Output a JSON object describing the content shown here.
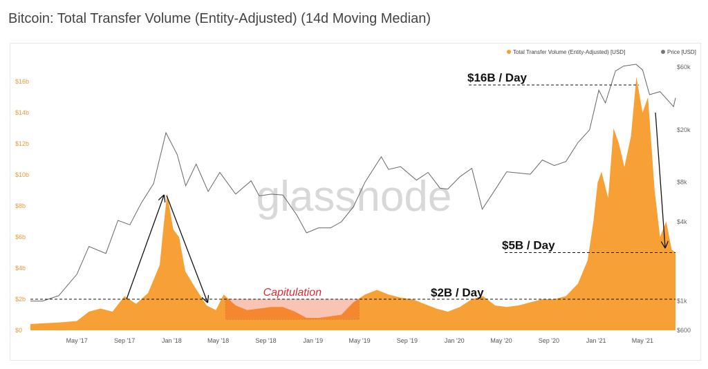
{
  "title": "Bitcoin: Total Transfer Volume (Entity-Adjusted) (14d Moving Median)",
  "chart_data": {
    "type": "area",
    "title": "Bitcoin: Total Transfer Volume (Entity-Adjusted) (14d Moving Median)",
    "legend": [
      {
        "label": "Total Transfer Volume (Entity-Adjusted) [USD]",
        "color": "#f7a035"
      },
      {
        "label": "Price [USD]",
        "color": "#777777"
      }
    ],
    "legend_position": "top-right",
    "x_ticks": [
      "May '17",
      "Sep '17",
      "Jan '18",
      "May '18",
      "Sep '18",
      "Jan '19",
      "May '19",
      "Sep '19",
      "Jan '20",
      "May '20",
      "Sep '20",
      "Jan '21",
      "May '21"
    ],
    "x_tick_dates": [
      "2017-05-01",
      "2017-09-01",
      "2018-01-01",
      "2018-05-01",
      "2018-09-01",
      "2019-01-01",
      "2019-05-01",
      "2019-09-01",
      "2020-01-01",
      "2020-05-01",
      "2020-09-01",
      "2021-01-01",
      "2021-05-01"
    ],
    "xlim": [
      "2017-01-01",
      "2021-07-25"
    ],
    "y_left": {
      "ticks": [
        "$0",
        "$2b",
        "$4b",
        "$6b",
        "$8b",
        "$10b",
        "$12b",
        "$14b",
        "$16b"
      ],
      "values": [
        0,
        2,
        4,
        6,
        8,
        10,
        12,
        14,
        16
      ],
      "lim": [
        0,
        16
      ],
      "unit": "billion USD"
    },
    "y_right": {
      "ticks": [
        "$600",
        "$1k",
        "$4k",
        "$8k",
        "$20k",
        "$60k"
      ],
      "values": [
        600,
        1000,
        4000,
        8000,
        20000,
        60000
      ],
      "lim": [
        600,
        60000
      ],
      "scale": "log"
    },
    "series": [
      {
        "name": "Total Transfer Volume (Entity-Adjusted) [USD]",
        "unit": "billion USD",
        "points": [
          [
            "2017-01-01",
            0.4
          ],
          [
            "2017-02-01",
            0.45
          ],
          [
            "2017-03-15",
            0.5
          ],
          [
            "2017-05-01",
            0.6
          ],
          [
            "2017-06-01",
            1.2
          ],
          [
            "2017-07-01",
            1.4
          ],
          [
            "2017-08-01",
            1.2
          ],
          [
            "2017-09-01",
            2.2
          ],
          [
            "2017-10-01",
            1.7
          ],
          [
            "2017-11-01",
            2.4
          ],
          [
            "2017-12-01",
            4.2
          ],
          [
            "2017-12-10",
            6.5
          ],
          [
            "2017-12-20",
            8.8
          ],
          [
            "2018-01-05",
            6.5
          ],
          [
            "2018-01-20",
            6.0
          ],
          [
            "2018-02-05",
            3.8
          ],
          [
            "2018-03-01",
            2.8
          ],
          [
            "2018-04-01",
            1.6
          ],
          [
            "2018-04-25",
            1.3
          ],
          [
            "2018-05-15",
            2.3
          ],
          [
            "2018-06-15",
            1.6
          ],
          [
            "2018-07-15",
            1.3
          ],
          [
            "2018-08-15",
            1.4
          ],
          [
            "2018-09-15",
            1.5
          ],
          [
            "2018-10-15",
            1.5
          ],
          [
            "2018-11-15",
            1.2
          ],
          [
            "2018-12-15",
            0.8
          ],
          [
            "2019-01-15",
            0.8
          ],
          [
            "2019-02-15",
            0.9
          ],
          [
            "2019-03-15",
            1.0
          ],
          [
            "2019-04-15",
            1.8
          ],
          [
            "2019-05-15",
            2.3
          ],
          [
            "2019-06-15",
            2.6
          ],
          [
            "2019-07-15",
            2.3
          ],
          [
            "2019-08-15",
            2.1
          ],
          [
            "2019-09-15",
            2.0
          ],
          [
            "2019-10-15",
            1.7
          ],
          [
            "2019-11-15",
            1.4
          ],
          [
            "2019-12-15",
            1.2
          ],
          [
            "2020-01-15",
            1.5
          ],
          [
            "2020-02-15",
            2.0
          ],
          [
            "2020-03-15",
            2.2
          ],
          [
            "2020-04-15",
            1.6
          ],
          [
            "2020-05-15",
            1.5
          ],
          [
            "2020-06-15",
            1.6
          ],
          [
            "2020-07-15",
            1.8
          ],
          [
            "2020-08-15",
            2.0
          ],
          [
            "2020-09-15",
            2.0
          ],
          [
            "2020-10-15",
            2.2
          ],
          [
            "2020-11-15",
            3.0
          ],
          [
            "2020-12-10",
            4.5
          ],
          [
            "2020-12-25",
            7.0
          ],
          [
            "2021-01-05",
            9.5
          ],
          [
            "2021-01-15",
            10.2
          ],
          [
            "2021-02-01",
            8.5
          ],
          [
            "2021-02-15",
            13.0
          ],
          [
            "2021-03-01",
            12.0
          ],
          [
            "2021-03-15",
            10.5
          ],
          [
            "2021-04-01",
            12.5
          ],
          [
            "2021-04-15",
            16.3
          ],
          [
            "2021-05-01",
            14.0
          ],
          [
            "2021-05-15",
            15.0
          ],
          [
            "2021-06-01",
            9.0
          ],
          [
            "2021-06-15",
            6.0
          ],
          [
            "2021-07-01",
            7.0
          ],
          [
            "2021-07-15",
            5.2
          ],
          [
            "2021-07-25",
            5.0
          ]
        ]
      },
      {
        "name": "Price [USD]",
        "unit": "USD",
        "points": [
          [
            "2017-01-01",
            1000
          ],
          [
            "2017-02-01",
            1000
          ],
          [
            "2017-03-15",
            1100
          ],
          [
            "2017-05-01",
            1600
          ],
          [
            "2017-06-01",
            2600
          ],
          [
            "2017-07-15",
            2300
          ],
          [
            "2017-08-15",
            4100
          ],
          [
            "2017-09-15",
            3800
          ],
          [
            "2017-10-15",
            5600
          ],
          [
            "2017-11-15",
            7800
          ],
          [
            "2017-12-17",
            19000
          ],
          [
            "2018-01-15",
            13000
          ],
          [
            "2018-02-06",
            7500
          ],
          [
            "2018-03-05",
            11000
          ],
          [
            "2018-04-05",
            6800
          ],
          [
            "2018-05-05",
            9500
          ],
          [
            "2018-06-15",
            6500
          ],
          [
            "2018-07-25",
            8200
          ],
          [
            "2018-08-15",
            6300
          ],
          [
            "2018-09-15",
            6500
          ],
          [
            "2018-10-15",
            6400
          ],
          [
            "2018-11-20",
            4500
          ],
          [
            "2018-12-15",
            3300
          ],
          [
            "2019-01-15",
            3600
          ],
          [
            "2019-02-15",
            3600
          ],
          [
            "2019-03-15",
            4000
          ],
          [
            "2019-04-15",
            5200
          ],
          [
            "2019-05-15",
            8000
          ],
          [
            "2019-06-26",
            12500
          ],
          [
            "2019-07-15",
            10000
          ],
          [
            "2019-08-15",
            10500
          ],
          [
            "2019-09-25",
            8300
          ],
          [
            "2019-10-25",
            9500
          ],
          [
            "2019-11-25",
            7200
          ],
          [
            "2019-12-15",
            7100
          ],
          [
            "2020-01-15",
            8800
          ],
          [
            "2020-02-15",
            10200
          ],
          [
            "2020-03-13",
            5000
          ],
          [
            "2020-04-15",
            7000
          ],
          [
            "2020-05-15",
            9600
          ],
          [
            "2020-06-15",
            9400
          ],
          [
            "2020-07-15",
            9200
          ],
          [
            "2020-08-15",
            11800
          ],
          [
            "2020-09-15",
            10700
          ],
          [
            "2020-10-15",
            11500
          ],
          [
            "2020-11-15",
            16000
          ],
          [
            "2020-12-15",
            20000
          ],
          [
            "2021-01-08",
            40000
          ],
          [
            "2021-01-25",
            32000
          ],
          [
            "2021-02-20",
            56000
          ],
          [
            "2021-03-13",
            61000
          ],
          [
            "2021-04-14",
            63000
          ],
          [
            "2021-05-01",
            57000
          ],
          [
            "2021-05-19",
            37000
          ],
          [
            "2021-06-15",
            39000
          ],
          [
            "2021-07-20",
            30000
          ],
          [
            "2021-07-25",
            35000
          ]
        ]
      }
    ],
    "annotations": [
      {
        "text": "$16B / Day",
        "value": 16
      },
      {
        "text": "$5B / Day",
        "value": 5
      },
      {
        "text": "$2B / Day",
        "value": 2
      },
      {
        "text": "Capitulation",
        "from": "2018-05-20",
        "to": "2019-04-30"
      }
    ],
    "watermark": "glassnode"
  }
}
